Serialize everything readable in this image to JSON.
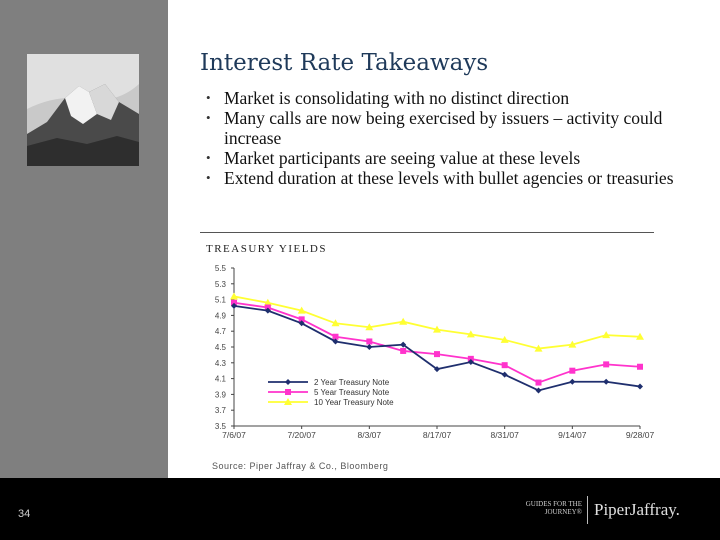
{
  "slide": {
    "title": "Interest Rate Takeaways",
    "bullets": [
      "Market is consolidating with no distinct direction",
      "Many calls are now being exercised by issuers – activity could increase",
      "Market participants are seeing value at these levels",
      "Extend duration at these levels with bullet agencies or treasuries"
    ],
    "page_number": "34",
    "logo_tagline": "GUIDES FOR THE JOURNEY®",
    "logo_name": "PiperJaffray."
  },
  "chart_data": {
    "type": "line",
    "title": "TREASURY YIELDS",
    "x": [
      "7/6/07",
      "7/13/07",
      "7/20/07",
      "7/27/07",
      "8/3/07",
      "8/10/07",
      "8/17/07",
      "8/24/07",
      "8/31/07",
      "9/7/07",
      "9/14/07",
      "9/21/07",
      "9/28/07"
    ],
    "xticks": [
      "7/6/07",
      "7/20/07",
      "8/3/07",
      "8/17/07",
      "8/31/07",
      "9/14/07",
      "9/28/07"
    ],
    "yticks": [
      "3.5",
      "3.7",
      "3.9",
      "4.1",
      "4.3",
      "4.5",
      "4.7",
      "4.9",
      "5.1",
      "5.3",
      "5.5"
    ],
    "ylim": [
      3.5,
      5.5
    ],
    "series": [
      {
        "name": "2 Year Treasury Note",
        "color": "#1f2f6e",
        "marker": "diamond",
        "values": [
          5.02,
          4.96,
          4.8,
          4.57,
          4.5,
          4.53,
          4.22,
          4.31,
          4.15,
          3.95,
          4.06,
          4.06,
          4.0
        ]
      },
      {
        "name": "5 Year Treasury Note",
        "color": "#ff33cc",
        "marker": "square",
        "values": [
          5.06,
          5.0,
          4.85,
          4.63,
          4.57,
          4.45,
          4.41,
          4.35,
          4.27,
          4.05,
          4.2,
          4.28,
          4.25
        ]
      },
      {
        "name": "10 Year Treasury Note",
        "color": "#ffff33",
        "marker": "triangle",
        "values": [
          5.14,
          5.06,
          4.96,
          4.8,
          4.75,
          4.82,
          4.72,
          4.66,
          4.59,
          4.48,
          4.53,
          4.65,
          4.63
        ]
      }
    ],
    "source": "Source: Piper Jaffray & Co., Bloomberg"
  }
}
